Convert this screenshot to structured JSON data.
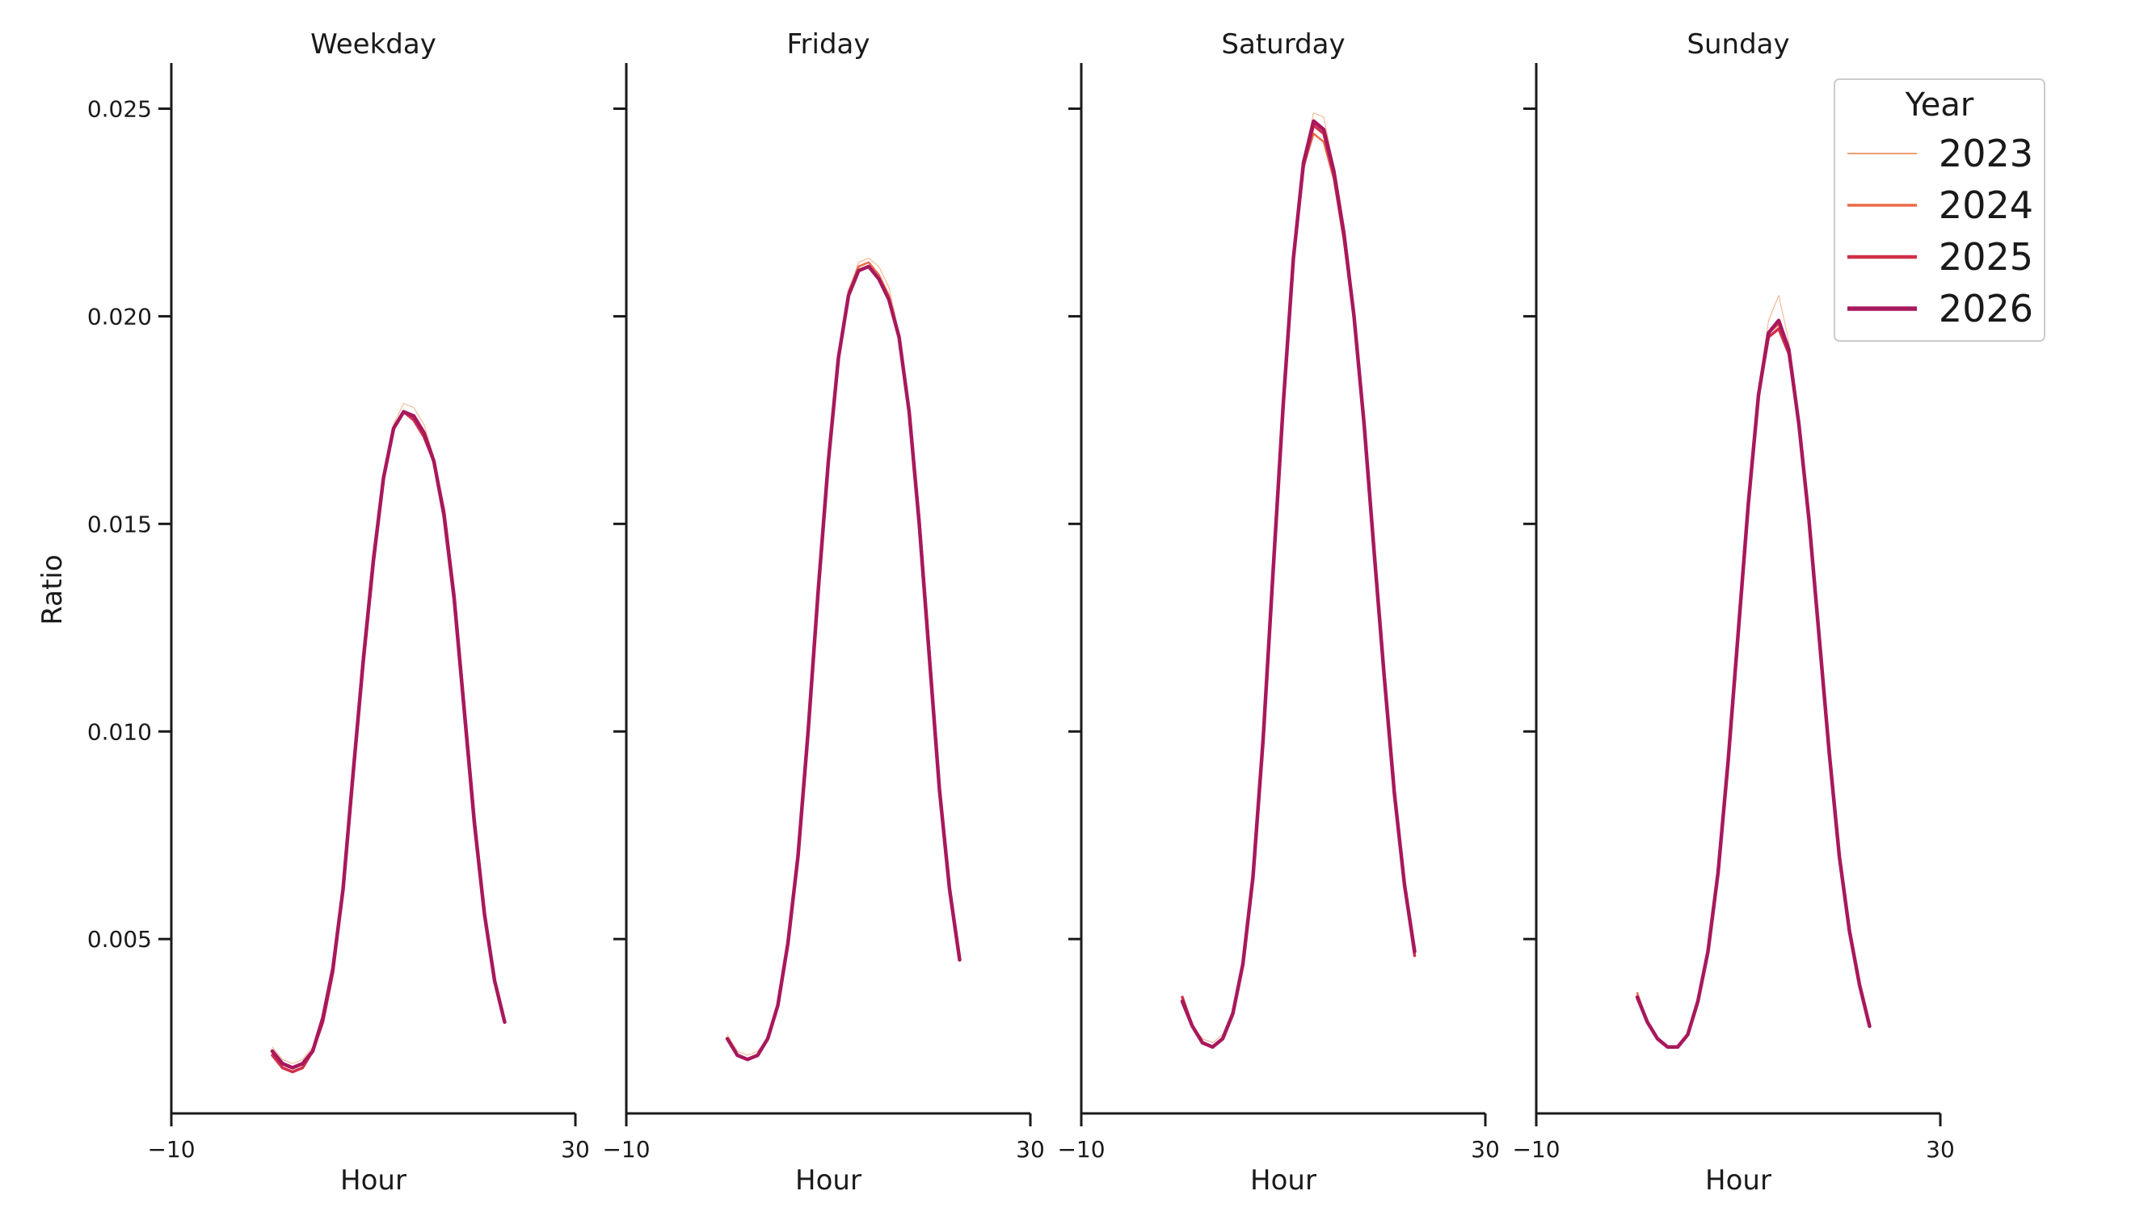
{
  "chart_data": {
    "type": "line",
    "facets": [
      {
        "title": "Weekday",
        "x": [
          0,
          1,
          2,
          3,
          4,
          5,
          6,
          7,
          8,
          9,
          10,
          11,
          12,
          13,
          14,
          15,
          16,
          17,
          18,
          19,
          20,
          21,
          22,
          23
        ],
        "series": [
          {
            "name": "2023",
            "values": [
              0.0024,
              0.0021,
              0.002,
              0.0021,
              0.0024,
              0.0031,
              0.0043,
              0.0062,
              0.0089,
              0.0117,
              0.0142,
              0.0161,
              0.0174,
              0.0179,
              0.0178,
              0.0174,
              0.0166,
              0.0153,
              0.0132,
              0.0105,
              0.0079,
              0.0056,
              0.004,
              0.003
            ]
          },
          {
            "name": "2024",
            "values": [
              0.0023,
              0.002,
              0.0019,
              0.002,
              0.0023,
              0.003,
              0.0043,
              0.0062,
              0.009,
              0.0118,
              0.0142,
              0.0161,
              0.0173,
              0.0177,
              0.0176,
              0.0172,
              0.0165,
              0.0152,
              0.0131,
              0.0104,
              0.0078,
              0.0056,
              0.004,
              0.003
            ]
          },
          {
            "name": "2025",
            "values": [
              0.0022,
              0.0019,
              0.0018,
              0.0019,
              0.0023,
              0.003,
              0.0042,
              0.0062,
              0.009,
              0.0118,
              0.0142,
              0.0161,
              0.0173,
              0.0177,
              0.0175,
              0.0171,
              0.0165,
              0.0153,
              0.0133,
              0.0106,
              0.0079,
              0.0056,
              0.004,
              0.003
            ]
          },
          {
            "name": "2026",
            "values": [
              0.0023,
              0.002,
              0.0019,
              0.002,
              0.0023,
              0.0031,
              0.0043,
              0.0062,
              0.009,
              0.0117,
              0.0141,
              0.0161,
              0.0173,
              0.0177,
              0.0176,
              0.0172,
              0.0165,
              0.0152,
              0.0132,
              0.0105,
              0.0078,
              0.0056,
              0.004,
              0.003
            ]
          }
        ]
      },
      {
        "title": "Friday",
        "x": [
          0,
          1,
          2,
          3,
          4,
          5,
          6,
          7,
          8,
          9,
          10,
          11,
          12,
          13,
          14,
          15,
          16,
          17,
          18,
          19,
          20,
          21,
          22,
          23
        ],
        "series": [
          {
            "name": "2023",
            "values": [
              0.0027,
              0.0023,
              0.0022,
              0.0023,
              0.0026,
              0.0034,
              0.0049,
              0.007,
              0.01,
              0.0134,
              0.0165,
              0.019,
              0.0206,
              0.0213,
              0.0214,
              0.0212,
              0.0207,
              0.0196,
              0.0177,
              0.015,
              0.0118,
              0.0086,
              0.0062,
              0.0045
            ]
          },
          {
            "name": "2024",
            "values": [
              0.0026,
              0.0022,
              0.0021,
              0.0022,
              0.0026,
              0.0034,
              0.0049,
              0.007,
              0.01,
              0.0134,
              0.0165,
              0.019,
              0.0206,
              0.0212,
              0.0213,
              0.021,
              0.0205,
              0.0195,
              0.0177,
              0.015,
              0.0118,
              0.0086,
              0.0062,
              0.0045
            ]
          },
          {
            "name": "2025",
            "values": [
              0.0026,
              0.0022,
              0.0021,
              0.0022,
              0.0026,
              0.0034,
              0.0049,
              0.007,
              0.01,
              0.0134,
              0.0165,
              0.019,
              0.0205,
              0.0211,
              0.0212,
              0.0209,
              0.0204,
              0.0195,
              0.0177,
              0.0151,
              0.0119,
              0.0086,
              0.0062,
              0.0045
            ]
          },
          {
            "name": "2026",
            "values": [
              0.0026,
              0.0022,
              0.0021,
              0.0022,
              0.0026,
              0.0034,
              0.0049,
              0.007,
              0.01,
              0.0134,
              0.0165,
              0.019,
              0.0205,
              0.0211,
              0.0212,
              0.0209,
              0.0204,
              0.0195,
              0.0177,
              0.015,
              0.0118,
              0.0086,
              0.0062,
              0.0045
            ]
          }
        ]
      },
      {
        "title": "Saturday",
        "x": [
          0,
          1,
          2,
          3,
          4,
          5,
          6,
          7,
          8,
          9,
          10,
          11,
          12,
          13,
          14,
          15,
          16,
          17,
          18,
          19,
          20,
          21,
          22,
          23
        ],
        "series": [
          {
            "name": "2023",
            "values": [
              0.0036,
              0.0029,
              0.0026,
              0.0025,
              0.0027,
              0.0033,
              0.0045,
              0.0066,
              0.0099,
              0.014,
              0.018,
              0.0215,
              0.0238,
              0.0249,
              0.0248,
              0.0236,
              0.022,
              0.02,
              0.0174,
              0.0143,
              0.0113,
              0.0085,
              0.0063,
              0.0047
            ]
          },
          {
            "name": "2024",
            "values": [
              0.0035,
              0.0029,
              0.0025,
              0.0024,
              0.0026,
              0.0032,
              0.0044,
              0.0065,
              0.0098,
              0.0139,
              0.0179,
              0.0214,
              0.0236,
              0.0244,
              0.0242,
              0.0233,
              0.0218,
              0.0199,
              0.0173,
              0.0143,
              0.0113,
              0.0085,
              0.0063,
              0.0047
            ]
          },
          {
            "name": "2025",
            "values": [
              0.0036,
              0.0029,
              0.0025,
              0.0024,
              0.0026,
              0.0032,
              0.0044,
              0.0065,
              0.0098,
              0.0139,
              0.0179,
              0.0214,
              0.0236,
              0.0246,
              0.0244,
              0.0234,
              0.0219,
              0.02,
              0.0174,
              0.0143,
              0.0113,
              0.0085,
              0.0063,
              0.0046
            ]
          },
          {
            "name": "2026",
            "values": [
              0.0035,
              0.0029,
              0.0025,
              0.0024,
              0.0026,
              0.0032,
              0.0044,
              0.0065,
              0.0098,
              0.0139,
              0.0179,
              0.0214,
              0.0237,
              0.0247,
              0.0245,
              0.0235,
              0.022,
              0.02,
              0.0174,
              0.0143,
              0.0113,
              0.0085,
              0.0063,
              0.0047
            ]
          }
        ]
      },
      {
        "title": "Sunday",
        "x": [
          0,
          1,
          2,
          3,
          4,
          5,
          6,
          7,
          8,
          9,
          10,
          11,
          12,
          13,
          14,
          15,
          16,
          17,
          18,
          19,
          20,
          21,
          22,
          23
        ],
        "series": [
          {
            "name": "2023",
            "values": [
              0.0037,
              0.003,
              0.0026,
              0.0024,
              0.0024,
              0.0027,
              0.0035,
              0.0047,
              0.0066,
              0.0093,
              0.0125,
              0.0157,
              0.0183,
              0.0199,
              0.0205,
              0.0194,
              0.0175,
              0.0151,
              0.0123,
              0.0095,
              0.007,
              0.0052,
              0.0039,
              0.0029
            ]
          },
          {
            "name": "2024",
            "values": [
              0.0037,
              0.003,
              0.0026,
              0.0024,
              0.0024,
              0.0027,
              0.0035,
              0.0047,
              0.0066,
              0.0093,
              0.0124,
              0.0155,
              0.0181,
              0.0196,
              0.0198,
              0.0191,
              0.0173,
              0.015,
              0.0122,
              0.0095,
              0.007,
              0.0052,
              0.0039,
              0.0029
            ]
          },
          {
            "name": "2025",
            "values": [
              0.0036,
              0.003,
              0.0026,
              0.0024,
              0.0024,
              0.0027,
              0.0035,
              0.0047,
              0.0066,
              0.0093,
              0.0124,
              0.0155,
              0.0181,
              0.0195,
              0.0197,
              0.0191,
              0.0174,
              0.0151,
              0.0123,
              0.0095,
              0.007,
              0.0052,
              0.0039,
              0.0029
            ]
          },
          {
            "name": "2026",
            "values": [
              0.0036,
              0.003,
              0.0026,
              0.0024,
              0.0024,
              0.0027,
              0.0035,
              0.0047,
              0.0066,
              0.0093,
              0.0124,
              0.0155,
              0.0181,
              0.0196,
              0.0199,
              0.0192,
              0.0174,
              0.0151,
              0.0123,
              0.0095,
              0.007,
              0.0052,
              0.0039,
              0.0029
            ]
          }
        ]
      }
    ],
    "xlabel": "Hour",
    "ylabel": "Ratio",
    "xlim": [
      -10,
      30
    ],
    "xticks": [
      -10,
      30
    ],
    "xtick_labels": [
      "−10",
      "30"
    ],
    "ylim": [
      0.0008,
      0.0261
    ],
    "yticks": [
      0.005,
      0.01,
      0.015,
      0.02,
      0.025
    ],
    "ytick_labels": [
      "0.005",
      "0.010",
      "0.015",
      "0.020",
      "0.025"
    ],
    "shared_y": true,
    "grid": false,
    "legend": {
      "title": "Year",
      "placement": "top-right",
      "entries": [
        "2023",
        "2024",
        "2025",
        "2026"
      ]
    },
    "series_colors": {
      "2023": "#f0a070",
      "2024": "#ea6b48",
      "2025": "#d0304a",
      "2026": "#a8185c"
    },
    "series_linewidths": {
      "2023": 1,
      "2024": 2.5,
      "2025": 3.5,
      "2026": 4.5
    }
  }
}
